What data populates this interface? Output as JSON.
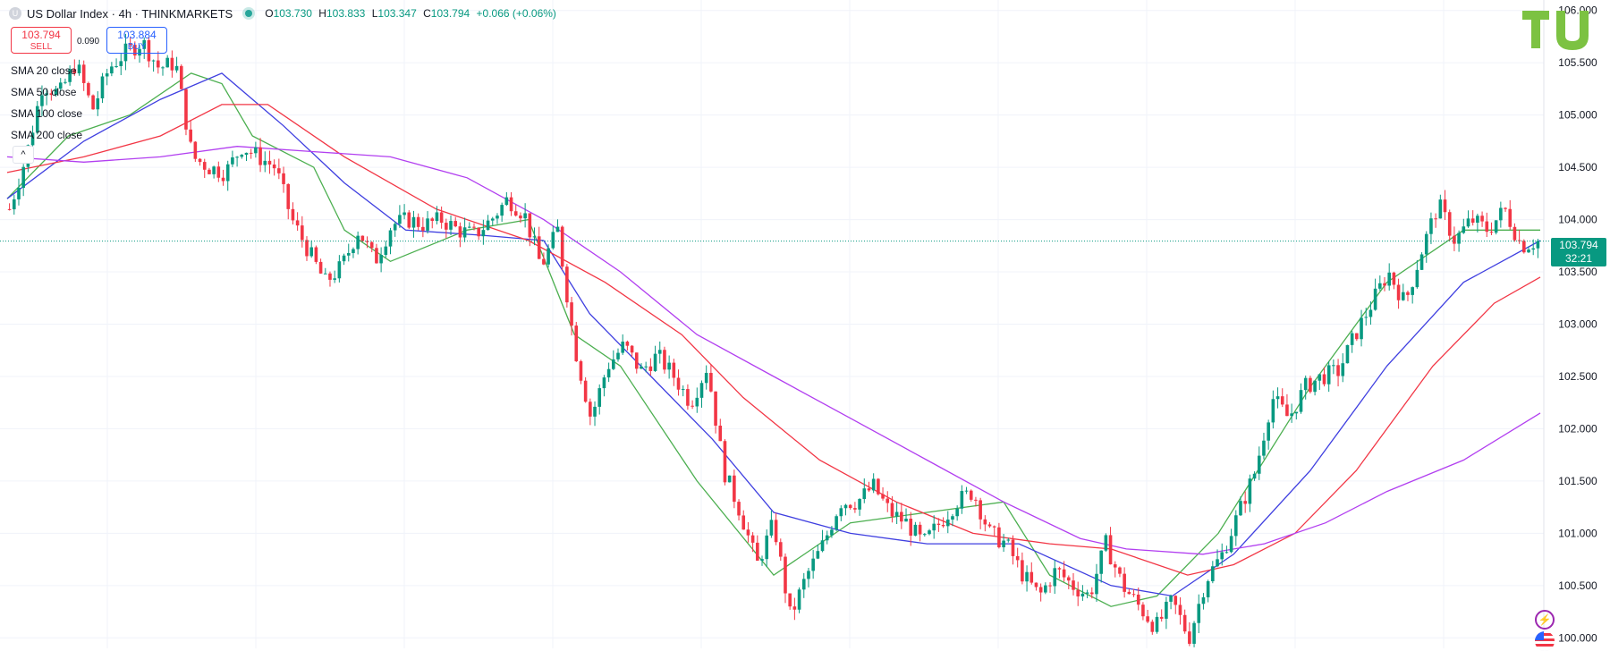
{
  "header": {
    "symbol_icon_letter": "U",
    "title": "US Dollar Index · 4h · THINKMARKETS",
    "ohlc": {
      "open_label": "O",
      "open": "103.730",
      "high_label": "H",
      "high": "103.833",
      "low_label": "L",
      "low": "103.347",
      "close_label": "C",
      "close": "103.794",
      "change": "+0.066 (+0.06%)"
    }
  },
  "trade": {
    "sell_price": "103.794",
    "sell_label": "SELL",
    "spread": "0.090",
    "buy_price": "103.884",
    "buy_label": "BUY"
  },
  "indicators": [
    {
      "label": "SMA 20 close",
      "color": "#4caf50"
    },
    {
      "label": "SMA 50 close",
      "color": "#3f3fe0"
    },
    {
      "label": "SMA 100 close",
      "color": "#f23645"
    },
    {
      "label": "SMA 200 close",
      "color": "#b23ff0"
    }
  ],
  "collapse_icon": "chevron-up-icon",
  "price_tag": {
    "price": "103.794",
    "countdown": "32:21"
  },
  "colors": {
    "up": "#089981",
    "down": "#f23645",
    "grid": "#f0f3fa",
    "logo": "#7cc242"
  },
  "chart_data": {
    "type": "candlestick",
    "timeframe": "4h",
    "y_axis_labels": [
      "106.000",
      "105.500",
      "105.000",
      "104.500",
      "104.000",
      "103.500",
      "103.000",
      "102.500",
      "102.000",
      "101.500",
      "101.000",
      "100.500",
      "100.000"
    ],
    "ylim": [
      99.9,
      106.1
    ],
    "last_price": 103.794,
    "series_path": [
      104.1,
      104.6,
      105.3,
      105.2,
      105.5,
      105.05,
      105.45,
      105.6,
      105.7,
      105.45,
      105.5,
      104.6,
      104.5,
      104.45,
      104.7,
      104.6,
      104.5,
      104.0,
      103.7,
      103.4,
      103.55,
      103.9,
      103.6,
      103.95,
      104.0,
      103.95,
      104.0,
      103.9,
      103.85,
      104.0,
      104.2,
      104.05,
      103.55,
      103.9,
      102.8,
      102.1,
      102.6,
      102.8,
      102.55,
      102.7,
      102.5,
      102.25,
      102.6,
      101.6,
      101.2,
      100.7,
      101.1,
      100.2,
      100.6,
      100.9,
      101.3,
      101.3,
      101.45,
      101.2,
      101.1,
      100.9,
      101.1,
      101.3,
      101.4,
      101.0,
      100.9,
      100.6,
      100.4,
      100.65,
      100.5,
      100.4,
      100.9,
      100.5,
      100.3,
      100.1,
      100.35,
      100.0,
      100.55,
      100.8,
      101.2,
      101.6,
      102.3,
      102.1,
      102.4,
      102.5,
      102.55,
      102.9,
      103.2,
      103.5,
      103.2,
      103.7,
      104.15,
      103.8,
      104.0,
      103.9,
      104.1,
      103.75,
      103.794
    ],
    "sma": {
      "SMA 20 close": [
        [
          0,
          104.2
        ],
        [
          0.04,
          104.8
        ],
        [
          0.08,
          105.0
        ],
        [
          0.12,
          105.4
        ],
        [
          0.14,
          105.3
        ],
        [
          0.16,
          104.8
        ],
        [
          0.2,
          104.5
        ],
        [
          0.22,
          103.9
        ],
        [
          0.25,
          103.6
        ],
        [
          0.3,
          103.9
        ],
        [
          0.34,
          104.0
        ],
        [
          0.37,
          102.9
        ],
        [
          0.4,
          102.6
        ],
        [
          0.45,
          101.5
        ],
        [
          0.5,
          100.6
        ],
        [
          0.55,
          101.1
        ],
        [
          0.6,
          101.2
        ],
        [
          0.65,
          101.3
        ],
        [
          0.68,
          100.6
        ],
        [
          0.72,
          100.3
        ],
        [
          0.75,
          100.4
        ],
        [
          0.79,
          101.0
        ],
        [
          0.85,
          102.4
        ],
        [
          0.9,
          103.4
        ],
        [
          0.95,
          103.9
        ],
        [
          1.0,
          103.9
        ]
      ],
      "SMA 50 close": [
        [
          0,
          104.2
        ],
        [
          0.05,
          104.75
        ],
        [
          0.1,
          105.15
        ],
        [
          0.14,
          105.4
        ],
        [
          0.18,
          104.9
        ],
        [
          0.22,
          104.35
        ],
        [
          0.26,
          103.9
        ],
        [
          0.31,
          103.85
        ],
        [
          0.35,
          103.8
        ],
        [
          0.38,
          103.1
        ],
        [
          0.42,
          102.5
        ],
        [
          0.46,
          101.9
        ],
        [
          0.5,
          101.2
        ],
        [
          0.55,
          101.0
        ],
        [
          0.6,
          100.9
        ],
        [
          0.66,
          100.9
        ],
        [
          0.72,
          100.5
        ],
        [
          0.76,
          100.4
        ],
        [
          0.8,
          100.8
        ],
        [
          0.85,
          101.6
        ],
        [
          0.9,
          102.6
        ],
        [
          0.95,
          103.4
        ],
        [
          1.0,
          103.8
        ]
      ],
      "SMA 100 close": [
        [
          0,
          104.45
        ],
        [
          0.05,
          104.6
        ],
        [
          0.1,
          104.8
        ],
        [
          0.14,
          105.1
        ],
        [
          0.17,
          105.1
        ],
        [
          0.22,
          104.6
        ],
        [
          0.28,
          104.1
        ],
        [
          0.34,
          103.8
        ],
        [
          0.39,
          103.4
        ],
        [
          0.44,
          102.9
        ],
        [
          0.48,
          102.3
        ],
        [
          0.53,
          101.7
        ],
        [
          0.58,
          101.3
        ],
        [
          0.63,
          101.0
        ],
        [
          0.68,
          100.9
        ],
        [
          0.72,
          100.85
        ],
        [
          0.77,
          100.6
        ],
        [
          0.8,
          100.7
        ],
        [
          0.84,
          101.0
        ],
        [
          0.88,
          101.6
        ],
        [
          0.93,
          102.6
        ],
        [
          0.97,
          103.2
        ],
        [
          1.0,
          103.45
        ]
      ],
      "SMA 200 close": [
        [
          0,
          104.6
        ],
        [
          0.05,
          104.55
        ],
        [
          0.1,
          104.6
        ],
        [
          0.15,
          104.7
        ],
        [
          0.2,
          104.65
        ],
        [
          0.25,
          104.6
        ],
        [
          0.3,
          104.4
        ],
        [
          0.35,
          104.0
        ],
        [
          0.4,
          103.5
        ],
        [
          0.45,
          102.9
        ],
        [
          0.5,
          102.5
        ],
        [
          0.55,
          102.1
        ],
        [
          0.6,
          101.7
        ],
        [
          0.65,
          101.3
        ],
        [
          0.7,
          100.95
        ],
        [
          0.73,
          100.85
        ],
        [
          0.78,
          100.8
        ],
        [
          0.82,
          100.9
        ],
        [
          0.86,
          101.1
        ],
        [
          0.9,
          101.4
        ],
        [
          0.95,
          101.7
        ],
        [
          1.0,
          102.15
        ]
      ]
    }
  }
}
